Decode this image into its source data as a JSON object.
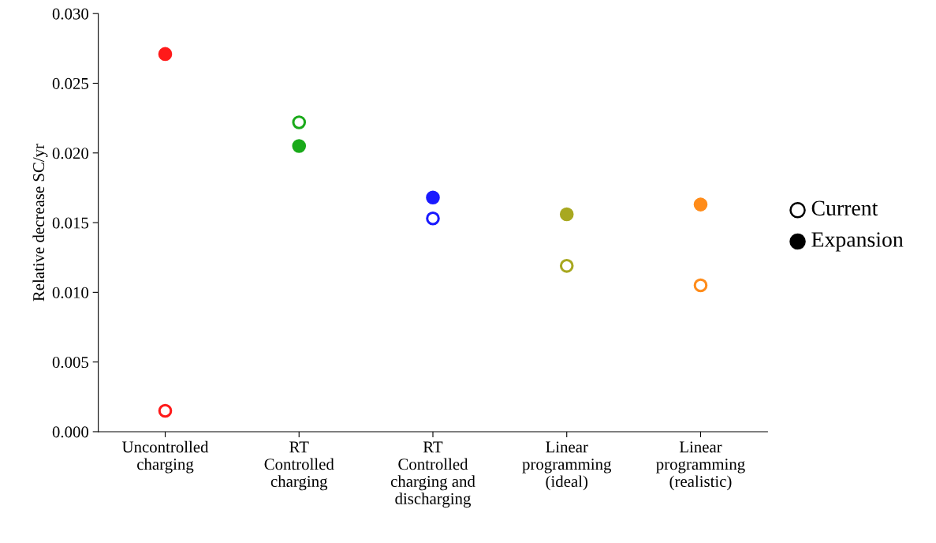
{
  "chart_data": {
    "type": "scatter",
    "ylabel": "Relative decrease SC/yr",
    "categories": [
      "Uncontrolled\ncharging",
      "RT\nControlled\ncharging",
      "RT\nControlled\ncharging and\ndischarging",
      "Linear\nprogramming\n(ideal)",
      "Linear\nprogramming\n(realistic)"
    ],
    "series": [
      {
        "color": "#ffffff",
        "colors": [
          "#ff1a1a",
          "#1aaa1a",
          "#1a1aff",
          "#a8a820",
          "#ff8c1a"
        ],
        "values": [
          0.0015,
          0.0222,
          0.0153,
          0.0119,
          0.0105
        ]
      },
      {
        "colors": [
          "#ff1a1a",
          "#1aaa1a",
          "#1a1aff",
          "#a8a820",
          "#ff8c1a"
        ],
        "values": [
          0.0271,
          0.0205,
          0.0168,
          0.0156,
          0.0163
        ]
      }
    ],
    "annotations": [
      "Current",
      "Expansion"
    ],
    "ylim": [
      0,
      0.03
    ],
    "yticks": [
      {
        "value": 0,
        "label": "0.000"
      },
      {
        "value": 0.005,
        "label": "0.005"
      },
      {
        "value": 0.01,
        "label": "0.010"
      },
      {
        "value": 0.015,
        "label": "0.015"
      },
      {
        "value": 0.02,
        "label": "0.020"
      },
      {
        "value": 0.025,
        "label": "0.025"
      },
      {
        "value": 0.03,
        "label": "0.030"
      }
    ],
    "grid": false,
    "marker": "circle"
  }
}
